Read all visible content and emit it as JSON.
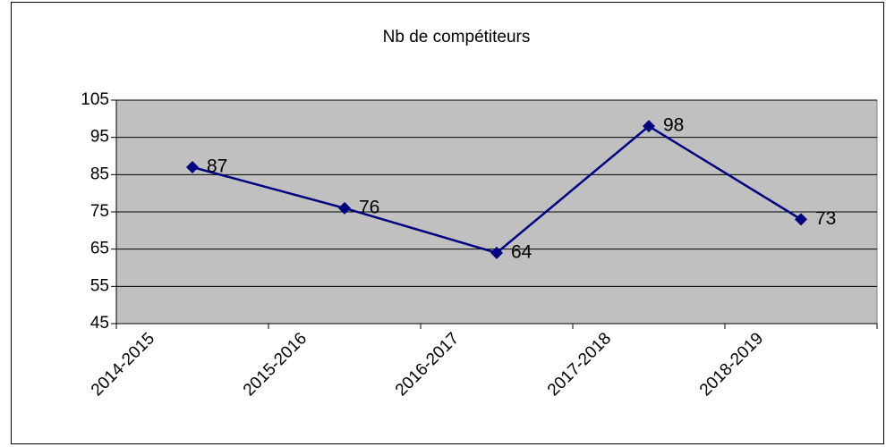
{
  "chart_data": {
    "type": "line",
    "title": "Nb de compétiteurs",
    "categories": [
      "2014-2015",
      "2015-2016",
      "2016-2017",
      "2017-2018",
      "2018-2019"
    ],
    "values": [
      87,
      76,
      64,
      98,
      73
    ],
    "color": "#000080",
    "ylim": [
      45,
      105
    ],
    "yticks": [
      45,
      55,
      65,
      75,
      85,
      95,
      105
    ],
    "grid": true,
    "data_labels": true
  }
}
